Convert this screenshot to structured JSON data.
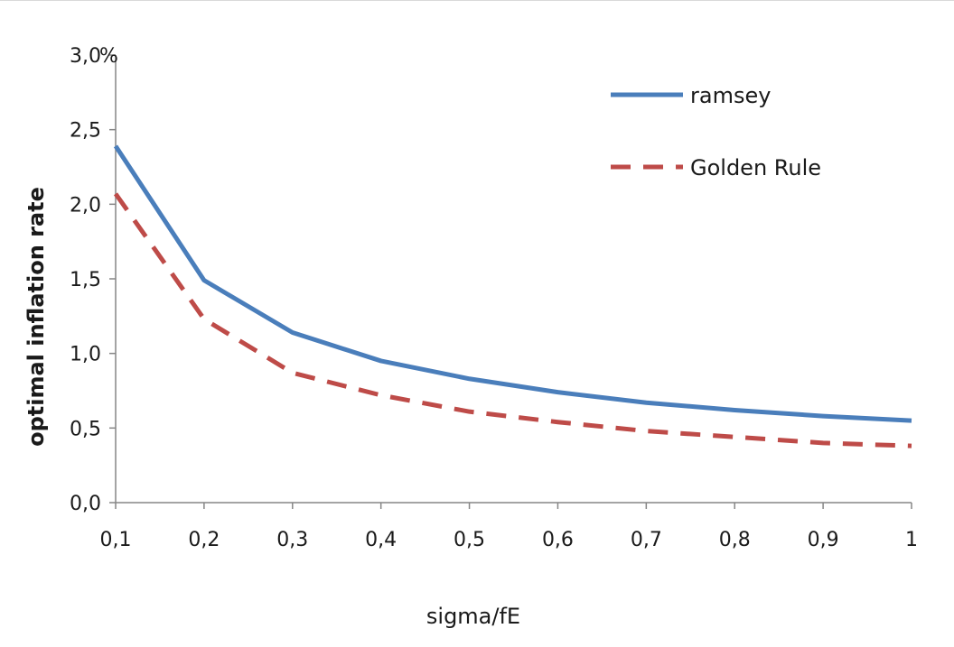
{
  "chart_data": {
    "type": "line",
    "x": [
      0.1,
      0.2,
      0.3,
      0.4,
      0.5,
      0.6,
      0.7,
      0.8,
      0.9,
      1.0
    ],
    "x_tick_labels": [
      "0,1",
      "0,2",
      "0,3",
      "0,4",
      "0,5",
      "0,6",
      "0,7",
      "0,8",
      "0,9",
      "1"
    ],
    "y_ticks": [
      0.0,
      0.5,
      1.0,
      1.5,
      2.0,
      2.5,
      3.0
    ],
    "y_tick_labels": [
      "0,0",
      "0,5",
      "1,0",
      "1,5",
      "2,0",
      "2,5",
      "3,0"
    ],
    "y_unit": "%",
    "xlabel": "sigma/fE",
    "ylabel": "optimal  inflation rate",
    "xlim": [
      0.1,
      1.0
    ],
    "ylim": [
      0.0,
      3.0
    ],
    "grid": false,
    "legend_position": "top-right",
    "series": [
      {
        "name": "ramsey",
        "color": "#4a7ebb",
        "style": "solid",
        "values": [
          2.39,
          1.49,
          1.14,
          0.95,
          0.83,
          0.74,
          0.67,
          0.62,
          0.58,
          0.55
        ]
      },
      {
        "name": "Golden Rule",
        "color": "#be4b48",
        "style": "dashed",
        "values": [
          2.07,
          1.23,
          0.87,
          0.72,
          0.61,
          0.54,
          0.48,
          0.44,
          0.4,
          0.38
        ]
      }
    ]
  }
}
